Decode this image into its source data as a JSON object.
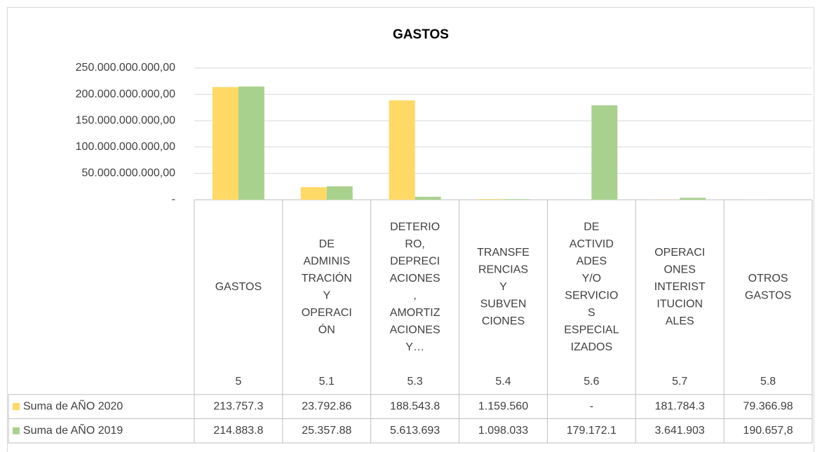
{
  "chart_data": {
    "type": "bar",
    "title": "GASTOS",
    "categories": [
      [
        "GASTOS"
      ],
      [
        "DE",
        "ADMINIS",
        "TRACIÓN",
        "Y",
        "OPERACI",
        "ÓN"
      ],
      [
        "DETERIO",
        "RO,",
        "DEPRECI",
        "ACIONES",
        ",",
        "AMORTIZ",
        "ACIONES",
        "Y…"
      ],
      [
        "TRANSFE",
        "RENCIAS",
        "Y",
        "SUBVEN",
        "CIONES"
      ],
      [
        "DE",
        "ACTIVID",
        "ADES",
        "Y/O",
        "SERVICIO",
        "S",
        "ESPECIAL",
        "IZADOS"
      ],
      [
        "OPERACI",
        "ONES",
        "INTERIST",
        "ITUCION",
        "ALES"
      ],
      [
        "OTROS",
        "GASTOS"
      ]
    ],
    "codes": [
      "5",
      "5.1",
      "5.3",
      "5.4",
      "5.6",
      "5.7",
      "5.8"
    ],
    "series": [
      {
        "name": "Suma de AÑO 2020",
        "color": "#ffd966",
        "values": [
          213757300000,
          23792860000,
          188543800000,
          1159560000,
          0,
          181784300,
          79366980
        ],
        "value_labels": [
          "213.757.3",
          "23.792.86",
          "188.543.8",
          "1.159.560",
          "-",
          "181.784.3",
          "79.366.98"
        ]
      },
      {
        "name": "Suma de AÑO 2019",
        "color": "#a9d18e",
        "values": [
          214883800000,
          25357880000,
          5613693000,
          1098033000,
          179172100000,
          3641903000,
          190657.8
        ],
        "value_labels": [
          "214.883.8",
          "25.357.88",
          "5.613.693",
          "1.098.033",
          "179.172.1",
          "3.641.903",
          "190.657,8"
        ]
      }
    ],
    "ylim": [
      0,
      250000000000
    ],
    "yticks": [
      {
        "value": 0,
        "label": "-"
      },
      {
        "value": 50000000000,
        "label": "50.000.000.000,00"
      },
      {
        "value": 100000000000,
        "label": "100.000.000.000,00"
      },
      {
        "value": 150000000000,
        "label": "150.000.000.000,00"
      },
      {
        "value": 200000000000,
        "label": "200.000.000.000,00"
      },
      {
        "value": 250000000000,
        "label": "250.000.000.000,00"
      }
    ],
    "grid": true
  }
}
